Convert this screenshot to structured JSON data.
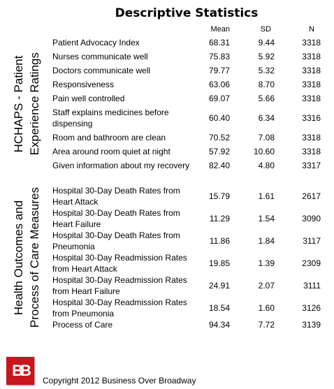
{
  "title": "Descriptive Statistics",
  "columns": [
    "Mean",
    "SD",
    "N"
  ],
  "groups": [
    {
      "label_lines": [
        "HCHAPS - Patient",
        "Experience Ratings"
      ],
      "rows": [
        [
          "Patient Advocacy Index",
          "68.31",
          "9.44",
          "3318"
        ],
        [
          "Nurses communicate well",
          "75.83",
          "5.92",
          "3318"
        ],
        [
          "Doctors communicate well",
          "79.77",
          "5.32",
          "3318"
        ],
        [
          "Responsiveness",
          "63.06",
          "8.70",
          "3318"
        ],
        [
          "Pain well controlled",
          "69.07",
          "5.66",
          "3318"
        ],
        [
          "Staff explains medicines before dispensing",
          "60.40",
          "6.34",
          "3316"
        ],
        [
          "Room and bathroom are clean",
          "70.52",
          "7.08",
          "3318"
        ],
        [
          "Area around room quiet at night",
          "57.92",
          "10.60",
          "3318"
        ],
        [
          "Given information about my recovery",
          "82.40",
          "4.80",
          "3317"
        ]
      ]
    },
    {
      "label_lines": [
        "Health Outcomes and",
        "Process of Care Measures"
      ],
      "rows": [
        [
          "Hospital 30-Day Death Rates from Heart Attack",
          "15.79",
          "1.61",
          "2617"
        ],
        [
          "Hospital 30-Day Death Rates from Heart Failure",
          "11.29",
          "1.54",
          "3090"
        ],
        [
          "Hospital 30-Day Death Rates from Pneumonia",
          "11.86",
          "1.84",
          "3117"
        ],
        [
          "Hospital 30-Day Readmission Rates from Heart Attack",
          "19.85",
          "1.39",
          "2309"
        ],
        [
          "Hospital 30-Day Readmission Rates from Heart Failure",
          "24.91",
          "2.07",
          "3111"
        ],
        [
          "Hospital 30-Day Readmission Rates from Pneumonia",
          "18.54",
          "1.60",
          "3126"
        ],
        [
          "Process of Care",
          "94.34",
          "7.72",
          "3139"
        ]
      ]
    }
  ],
  "logo": "BB",
  "footer": "Copyright 2012 Business Over Broadway"
}
